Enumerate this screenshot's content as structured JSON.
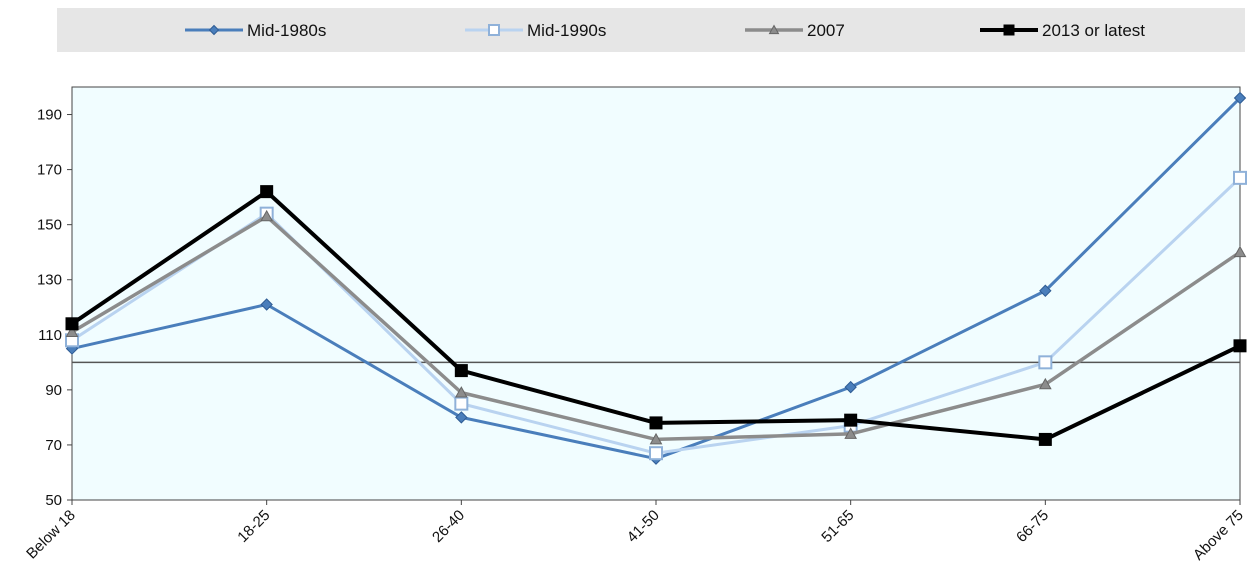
{
  "chart_data": {
    "type": "line",
    "title": "",
    "xlabel": "",
    "ylabel": "",
    "categories": [
      "Below 18",
      "18-25",
      "26-40",
      "41-50",
      "51-65",
      "66-75",
      "Above 75"
    ],
    "ylim": [
      50,
      200
    ],
    "yticks": [
      50,
      70,
      90,
      110,
      130,
      150,
      170,
      190
    ],
    "reference_line": 100,
    "grid": false,
    "legend_position": "top",
    "plot_background": "#f1fdff",
    "series": [
      {
        "name": "Mid-1980s",
        "color": "#4a7ebb",
        "marker": "diamond",
        "values": [
          105,
          121,
          80,
          65,
          91,
          126,
          196
        ]
      },
      {
        "name": "Mid-1990s",
        "color": "#b9d3f0",
        "marker": "square-open",
        "values": [
          108,
          154,
          85,
          67,
          77,
          100,
          167
        ]
      },
      {
        "name": "2007",
        "color": "#8c8c8c",
        "marker": "triangle",
        "values": [
          111,
          153,
          89,
          72,
          74,
          92,
          140
        ]
      },
      {
        "name": "2013 or latest",
        "color": "#000000",
        "marker": "square",
        "values": [
          114,
          162,
          97,
          78,
          79,
          72,
          106
        ]
      }
    ]
  }
}
